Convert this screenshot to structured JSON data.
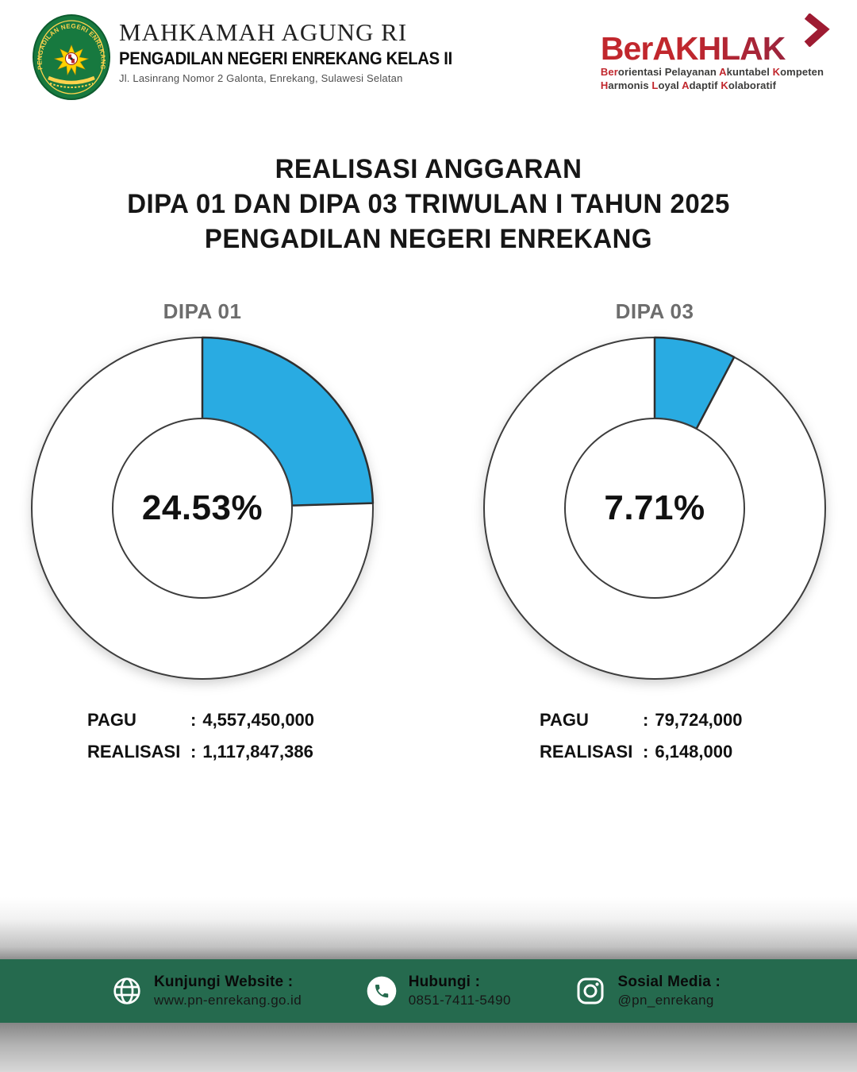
{
  "header": {
    "org_title": "MAHKAMAH AGUNG RI",
    "org_subtitle": "PENGADILAN NEGERI ENREKANG KELAS II",
    "org_address": "Jl. Lasinrang Nomor 2 Galonta, Enrekang, Sulawesi Selatan",
    "seal_text": "PENGADILAN NEGERI ENREKANG",
    "berakhlak": {
      "wordmark": "BerAKHLAK",
      "chevron_icon": "chevron-right-icon",
      "tagline1": [
        {
          "t": "Ber",
          "red": true
        },
        {
          "t": "orientasi Pelayanan ",
          "red": false
        },
        {
          "t": "A",
          "red": true
        },
        {
          "t": "kuntabel ",
          "red": false
        },
        {
          "t": "K",
          "red": true
        },
        {
          "t": "ompeten",
          "red": false
        }
      ],
      "tagline2": [
        {
          "t": "H",
          "red": true
        },
        {
          "t": "armonis ",
          "red": false
        },
        {
          "t": "L",
          "red": true
        },
        {
          "t": "oyal ",
          "red": false
        },
        {
          "t": "A",
          "red": true
        },
        {
          "t": "daptif ",
          "red": false
        },
        {
          "t": "K",
          "red": true
        },
        {
          "t": "olaboratif",
          "red": false
        }
      ]
    }
  },
  "title": {
    "line1": "REALISASI ANGGARAN",
    "line2": "DIPA 01 DAN DIPA 03 TRIWULAN I TAHUN 2025",
    "line3": "PENGADILAN NEGERI ENREKANG"
  },
  "stats": {
    "pagu_label": "PAGU",
    "realisasi_label": "REALISASI",
    "colon": ":"
  },
  "chart_data": [
    {
      "type": "donut",
      "title": "DIPA 01",
      "percent": 24.53,
      "center_label": "24.53%",
      "segments": [
        {
          "label": "realisasi",
          "value": 24.53,
          "color": "#29ABE2"
        },
        {
          "label": "sisa",
          "value": 75.47,
          "color": "#FFFFFF"
        }
      ],
      "pagu": "4,557,450,000",
      "realisasi": "1,117,847,386"
    },
    {
      "type": "donut",
      "title": "DIPA 03",
      "percent": 7.71,
      "center_label": "7.71%",
      "segments": [
        {
          "label": "realisasi",
          "value": 7.71,
          "color": "#29ABE2"
        },
        {
          "label": "sisa",
          "value": 92.29,
          "color": "#FFFFFF"
        }
      ],
      "pagu": "79,724,000",
      "realisasi": "6,148,000"
    }
  ],
  "footer": {
    "items": [
      {
        "icon": "globe-icon",
        "title": "Kunjungi Website :",
        "value": "www.pn-enrekang.go.id"
      },
      {
        "icon": "phone-icon",
        "title": "Hubungi :",
        "value": "0851-7411-5490"
      },
      {
        "icon": "instagram-icon",
        "title": "Sosial Media :",
        "value": "@pn_enrekang"
      }
    ]
  },
  "colors": {
    "accent_blue": "#29ABE2",
    "footer_green": "#256A4E",
    "seal_green": "#17793F",
    "seal_gold": "#FFD34D",
    "berakhlak_red": "#C1272D",
    "berakhlak_maroon": "#8E2342",
    "chart_title_gray": "#6D6D6D"
  }
}
